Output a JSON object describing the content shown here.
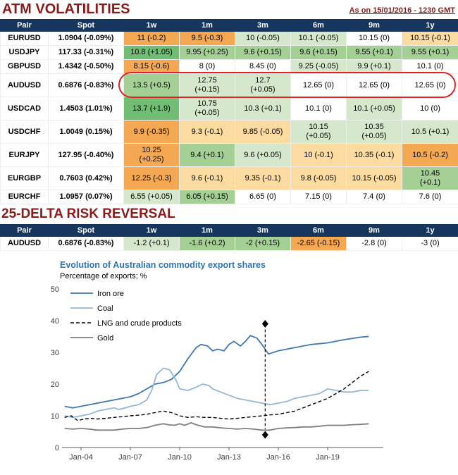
{
  "header": {
    "title": "ATM VOLATILITIES",
    "timestamp": "As on 15/01/2016 - 1230 GMT"
  },
  "colors": {
    "title_red": "#8B1A1A",
    "table_header_bg": "#17365D",
    "highlight_circle": "#E32222",
    "chart_title_blue": "#2E75B6",
    "palette": {
      "w": "#FFFFFF",
      "g1": "#D6E8CB",
      "g2": "#A4D095",
      "g3": "#6FBE74",
      "o1": "#FBDBA0",
      "o2": "#F4A851"
    }
  },
  "atm_table": {
    "columns": [
      "Pair",
      "Spot",
      "1w",
      "1m",
      "3m",
      "6m",
      "9m",
      "1y"
    ],
    "rows": [
      {
        "pair": "EURUSD",
        "spot": "1.0904 (-0.09%)",
        "cells": [
          {
            "text": "11 (-0.2)",
            "color": "o2"
          },
          {
            "text": "9.5 (-0.3)",
            "color": "o2"
          },
          {
            "text": "10 (-0.05)",
            "color": "g1"
          },
          {
            "text": "10.1 (-0.05)",
            "color": "g1"
          },
          {
            "text": "10.15 (0)",
            "color": "w"
          },
          {
            "text": "10.15 (-0.1)",
            "color": "o1"
          }
        ]
      },
      {
        "pair": "USDJPY",
        "spot": "117.33 (-0.31%)",
        "cells": [
          {
            "text": "10.8 (+1.05)",
            "color": "g3"
          },
          {
            "text": "9.95 (+0.25)",
            "color": "g2"
          },
          {
            "text": "9.6 (+0.15)",
            "color": "g2"
          },
          {
            "text": "9.6 (+0.15)",
            "color": "g2"
          },
          {
            "text": "9.55 (+0.1)",
            "color": "g2"
          },
          {
            "text": "9.55 (+0.1)",
            "color": "g2"
          }
        ]
      },
      {
        "pair": "GBPUSD",
        "spot": "1.4342 (-0.50%)",
        "cells": [
          {
            "text": "8.15 (-0.6)",
            "color": "o2"
          },
          {
            "text": "8 (0)",
            "color": "w"
          },
          {
            "text": "8.45 (0)",
            "color": "w"
          },
          {
            "text": "9.25 (-0.05)",
            "color": "g1"
          },
          {
            "text": "9.9 (+0.1)",
            "color": "g1"
          },
          {
            "text": "10.1 (0)",
            "color": "w"
          }
        ]
      },
      {
        "pair": "AUDUSD",
        "spot": "0.6876 (-0.83%)",
        "cells": [
          {
            "text": "13.5 (+0.5)",
            "color": "g2"
          },
          {
            "text": "12.75\n(+0.15)",
            "color": "g1"
          },
          {
            "text": "12.7\n(+0.05)",
            "color": "g1"
          },
          {
            "text": "12.65 (0)",
            "color": "w"
          },
          {
            "text": "12.65 (0)",
            "color": "w"
          },
          {
            "text": "12.65 (0)",
            "color": "w"
          }
        ]
      },
      {
        "pair": "USDCAD",
        "spot": "1.4503 (1.01%)",
        "cells": [
          {
            "text": "13.7 (+1.9)",
            "color": "g3"
          },
          {
            "text": "10.75\n(+0.05)",
            "color": "g1"
          },
          {
            "text": "10.3 (+0.1)",
            "color": "g1"
          },
          {
            "text": "10.1 (0)",
            "color": "w"
          },
          {
            "text": "10.1 (+0.05)",
            "color": "g1"
          },
          {
            "text": "10 (0)",
            "color": "w"
          }
        ]
      },
      {
        "pair": "USDCHF",
        "spot": "1.0049 (0.15%)",
        "cells": [
          {
            "text": "9.9 (-0.35)",
            "color": "o2"
          },
          {
            "text": "9.3 (-0.1)",
            "color": "o1"
          },
          {
            "text": "9.85 (-0.05)",
            "color": "o1"
          },
          {
            "text": "10.15\n(+0.05)",
            "color": "g1"
          },
          {
            "text": "10.35\n(+0.05)",
            "color": "g1"
          },
          {
            "text": "10.5 (+0.1)",
            "color": "g1"
          }
        ]
      },
      {
        "pair": "EURJPY",
        "spot": "127.95 (-0.40%)",
        "cells": [
          {
            "text": "10.25\n(+0.25)",
            "color": "o2"
          },
          {
            "text": "9.4 (+0.1)",
            "color": "g2"
          },
          {
            "text": "9.6 (+0.05)",
            "color": "g1"
          },
          {
            "text": "10 (-0.1)",
            "color": "o1"
          },
          {
            "text": "10.35 (-0.1)",
            "color": "o1"
          },
          {
            "text": "10.5 (-0.2)",
            "color": "o2"
          }
        ]
      },
      {
        "pair": "EURGBP",
        "spot": "0.7603 (0.42%)",
        "cells": [
          {
            "text": "12.25 (-0.3)",
            "color": "o2"
          },
          {
            "text": "9.6 (-0.1)",
            "color": "o1"
          },
          {
            "text": "9.35 (-0.1)",
            "color": "o1"
          },
          {
            "text": "9.8 (-0.05)",
            "color": "o1"
          },
          {
            "text": "10.15 (-0.05)",
            "color": "o1"
          },
          {
            "text": "10.45\n(+0.1)",
            "color": "g2"
          }
        ]
      },
      {
        "pair": "EURCHF",
        "spot": "1.0957 (0.07%)",
        "cells": [
          {
            "text": "6.55 (+0.05)",
            "color": "g1"
          },
          {
            "text": "6.05 (+0.15)",
            "color": "g2"
          },
          {
            "text": "6.65 (0)",
            "color": "w"
          },
          {
            "text": "7.15 (0)",
            "color": "w"
          },
          {
            "text": "7.4 (0)",
            "color": "w"
          },
          {
            "text": "7.6 (0)",
            "color": "w"
          }
        ]
      }
    ]
  },
  "rr_section": {
    "title": "25-DELTA RISK REVERSAL"
  },
  "rr_table": {
    "columns": [
      "Pair",
      "Spot",
      "1w",
      "1m",
      "3m",
      "6m",
      "9m",
      "1y"
    ],
    "rows": [
      {
        "pair": "AUDUSD",
        "spot": "0.6876 (-0.83%)",
        "cells": [
          {
            "text": "-1.2 (+0.1)",
            "color": "g1"
          },
          {
            "text": "-1.6 (+0.2)",
            "color": "g2"
          },
          {
            "text": "-2 (+0.15)",
            "color": "g2"
          },
          {
            "text": "-2.65 (-0.15)",
            "color": "o2"
          },
          {
            "text": "-2.8 (0)",
            "color": "w"
          },
          {
            "text": "-3 (0)",
            "color": "w"
          }
        ]
      }
    ]
  },
  "chart_data": {
    "type": "line",
    "title": "Evolution of Australian commodity export shares",
    "subtitle": "Percentage of exports; %",
    "ylim": [
      0,
      50
    ],
    "yticks": [
      0,
      10,
      20,
      30,
      40,
      50
    ],
    "xticks": [
      "Jan-04",
      "Jan-07",
      "Jan-10",
      "Jan-13",
      "Jan-16",
      "Jan-19"
    ],
    "xtick_years": [
      2004,
      2007,
      2010,
      2013,
      2016,
      2019
    ],
    "grid": "off",
    "legend_position": "top-left",
    "series": [
      {
        "name": "Iron ore",
        "color": "#3D78B0",
        "dash": "solid",
        "x": [
          2003,
          2003.5,
          2004,
          2004.5,
          2005,
          2005.5,
          2006,
          2006.5,
          2007,
          2007.5,
          2008,
          2008.5,
          2009,
          2009.5,
          2010,
          2010.5,
          2011,
          2011.3,
          2011.7,
          2012,
          2012.3,
          2012.7,
          2013,
          2013.3,
          2013.7,
          2014,
          2014.3,
          2014.7,
          2015,
          2015.4,
          2016,
          2016.5,
          2017,
          2018,
          2019,
          2020,
          2021,
          2021.5
        ],
        "y": [
          13,
          12.5,
          13,
          13.5,
          14,
          14.5,
          15,
          15.5,
          16,
          17,
          18.5,
          20,
          20.5,
          21.5,
          24,
          28,
          31.5,
          32.5,
          32,
          30.5,
          31,
          30.5,
          32.5,
          33.5,
          32,
          33.5,
          35.3,
          34.5,
          32.5,
          29.5,
          30.5,
          31,
          31.5,
          32.5,
          33,
          34,
          34.8,
          35
        ]
      },
      {
        "name": "Coal",
        "color": "#95B7D3",
        "dash": "solid",
        "x": [
          2003,
          2003.5,
          2004,
          2004.5,
          2005,
          2005.5,
          2006,
          2006.3,
          2006.7,
          2007,
          2007.5,
          2008,
          2008.3,
          2008.6,
          2009,
          2009.4,
          2009.8,
          2010,
          2010.5,
          2011,
          2011.4,
          2011.8,
          2012,
          2012.5,
          2013,
          2013.5,
          2014,
          2014.5,
          2015,
          2015.5,
          2016,
          2016.5,
          2017,
          2017.5,
          2018,
          2018.5,
          2019,
          2019.5,
          2020,
          2020.5,
          2021,
          2021.5
        ],
        "y": [
          10,
          9.5,
          10,
          10.5,
          11.5,
          12,
          12.5,
          12,
          12.5,
          13,
          13.5,
          15,
          18,
          23,
          25,
          24.5,
          21,
          18.5,
          18,
          19,
          20,
          19.5,
          18.5,
          17.5,
          16.5,
          15.5,
          15,
          14.5,
          14,
          13.5,
          14,
          14.5,
          15.5,
          16,
          16.5,
          17,
          18.5,
          18,
          17.5,
          17.5,
          18,
          18
        ]
      },
      {
        "name": "LNG and crude products",
        "color": "#000000",
        "dash": "dashed",
        "x": [
          2003,
          2003.4,
          2003.8,
          2004.2,
          2004.6,
          2005,
          2005.5,
          2006,
          2006.5,
          2007,
          2007.5,
          2008,
          2008.5,
          2009,
          2009.5,
          2010,
          2010.5,
          2011,
          2011.5,
          2012,
          2012.5,
          2013,
          2013.5,
          2014,
          2014.5,
          2015,
          2015.5,
          2016,
          2016.5,
          2017,
          2017.5,
          2018,
          2018.5,
          2019,
          2019.5,
          2020,
          2020.5,
          2021,
          2021.5
        ],
        "y": [
          9.5,
          10,
          8.5,
          9,
          9.2,
          9,
          9.2,
          9.5,
          9.7,
          10,
          10.2,
          10.5,
          11,
          11.5,
          11,
          10,
          9.5,
          9.7,
          9.5,
          9.5,
          9.2,
          9,
          9.2,
          9.5,
          9.7,
          10,
          10.3,
          10.5,
          11,
          11.5,
          12.5,
          13.5,
          14.5,
          15.5,
          17,
          18.5,
          20.5,
          22.5,
          24
        ]
      },
      {
        "name": "Gold",
        "color": "#7F7F7F",
        "dash": "solid",
        "x": [
          2003,
          2003.5,
          2004,
          2004.5,
          2005,
          2005.5,
          2006,
          2006.5,
          2007,
          2007.5,
          2008,
          2008.5,
          2009,
          2009.3,
          2009.7,
          2010,
          2010.3,
          2010.7,
          2011,
          2011.5,
          2012,
          2012.5,
          2013,
          2013.5,
          2014,
          2014.5,
          2015,
          2015.5,
          2016,
          2016.5,
          2017,
          2017.5,
          2018,
          2018.5,
          2019,
          2019.5,
          2020,
          2020.5,
          2021,
          2021.5
        ],
        "y": [
          6,
          5.8,
          6,
          5.8,
          5.5,
          5.5,
          5.5,
          5.8,
          6,
          6,
          6.3,
          7,
          7.5,
          7.2,
          7,
          7.5,
          7,
          7.8,
          7.2,
          6.5,
          6.5,
          6.2,
          6,
          5.8,
          6,
          5.8,
          5.5,
          5.5,
          6,
          6.2,
          6.3,
          6.5,
          6.5,
          6.7,
          7,
          7,
          7,
          7.2,
          7.3,
          7.5
        ]
      }
    ],
    "annotation": {
      "type": "vline-diamonds",
      "x": 2015.2,
      "y_top": 39,
      "y_bottom": 4
    }
  }
}
